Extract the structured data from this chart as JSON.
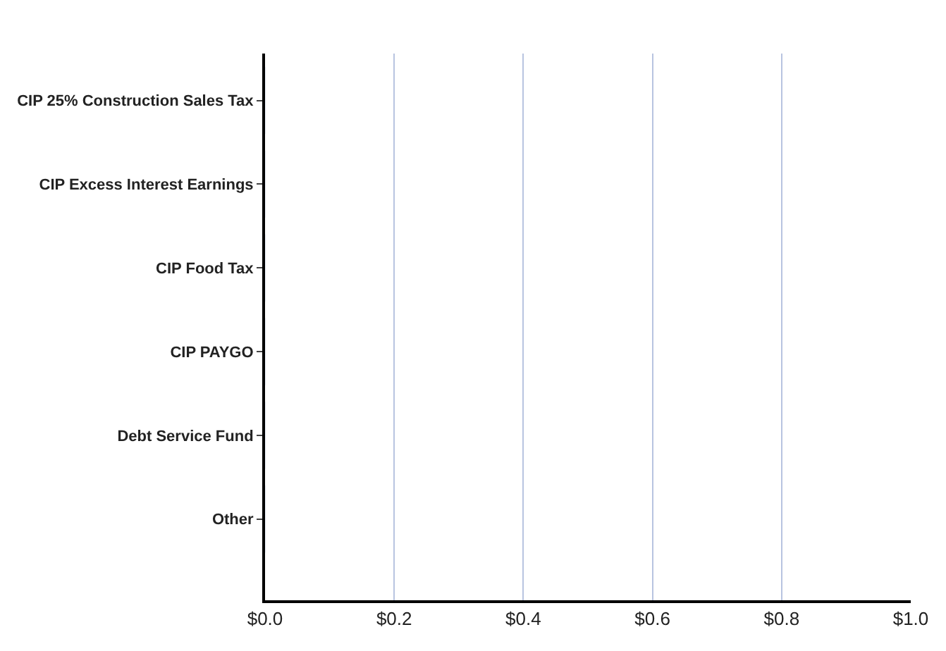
{
  "chart_data": {
    "type": "bar",
    "orientation": "horizontal",
    "categories": [
      "CIP 25% Construction Sales Tax",
      "CIP Excess Interest Earnings",
      "CIP Food Tax",
      "CIP PAYGO",
      "Debt Service Fund",
      "Other"
    ],
    "values": [
      0,
      0,
      0,
      0,
      0,
      0
    ],
    "xlim": [
      0,
      1.0
    ],
    "xticks": [
      {
        "value": 0,
        "label": "$0.0"
      },
      {
        "value": 0.2,
        "label": "$0.2"
      },
      {
        "value": 0.4,
        "label": "$0.4"
      },
      {
        "value": 0.6,
        "label": "$0.6"
      },
      {
        "value": 0.8,
        "label": "$0.8"
      },
      {
        "value": 1.0,
        "label": "$1.0"
      }
    ],
    "grid": "x"
  }
}
